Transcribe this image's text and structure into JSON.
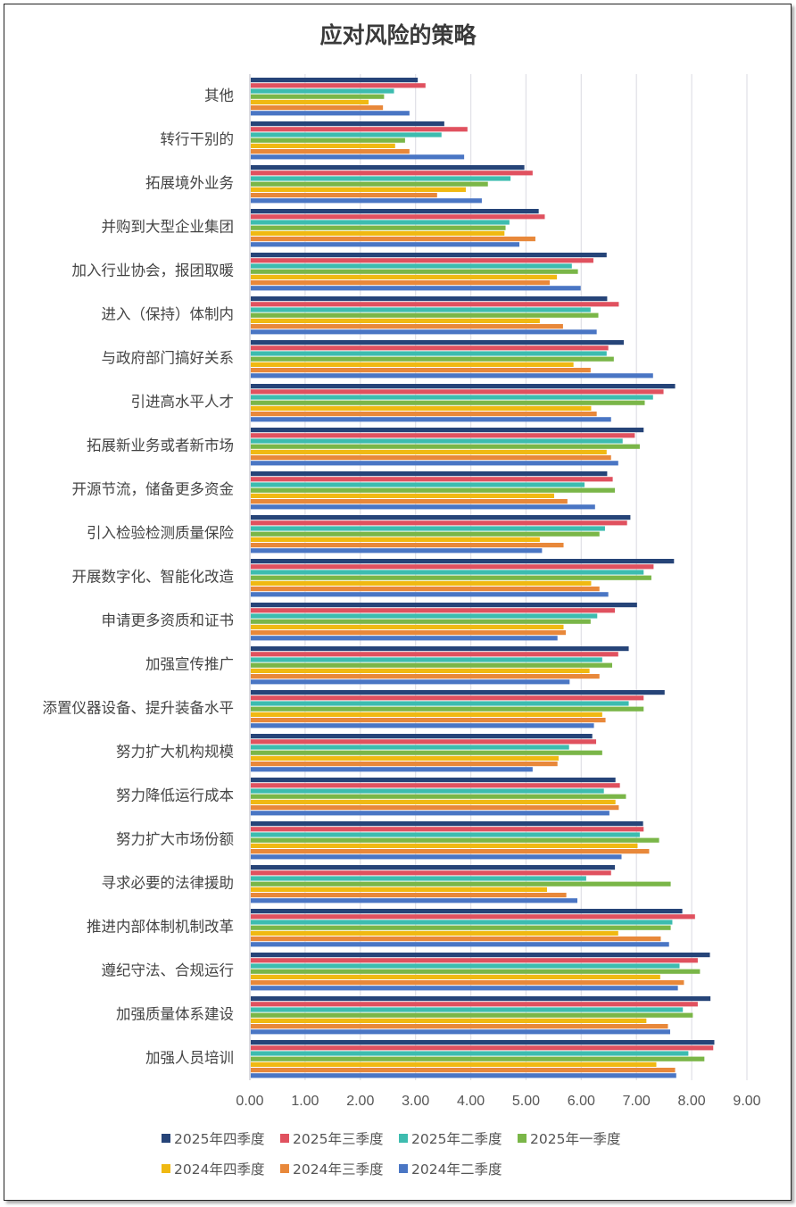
{
  "chart_data": {
    "type": "bar",
    "orientation": "horizontal",
    "title": "应对风险的策略",
    "categories": [
      "其他",
      "转行干别的",
      "拓展境外业务",
      "并购到大型企业集团",
      "加入行业协会，报团取暖",
      "进入（保持）体制内",
      "与政府部门搞好关系",
      "引进高水平人才",
      "拓展新业务或者新市场",
      "开源节流，储备更多资金",
      "引入检验检测质量保险",
      "开展数字化、智能化改造",
      "申请更多资质和证书",
      "加强宣传推广",
      "添置仪器设备、提升装备水平",
      "努力扩大机构规模",
      "努力降低运行成本",
      "努力扩大市场份额",
      "寻求必要的法律援助",
      "推进内部体制机制改革",
      "遵纪守法、合规运行",
      "加强质量体系建设",
      "加强人员培训"
    ],
    "series": [
      {
        "name": "2025年四季度",
        "color": "#264478",
        "values": [
          3.04,
          3.52,
          4.97,
          5.23,
          6.46,
          6.47,
          6.77,
          7.7,
          7.13,
          6.47,
          6.89,
          7.68,
          7.01,
          6.86,
          7.51,
          6.2,
          6.62,
          7.12,
          6.61,
          7.83,
          8.33,
          8.34,
          8.41
        ]
      },
      {
        "name": "2025年三季度",
        "color": "#E0515F",
        "values": [
          3.18,
          3.94,
          5.12,
          5.34,
          6.22,
          6.68,
          6.49,
          7.49,
          6.97,
          6.57,
          6.83,
          7.31,
          6.61,
          6.67,
          7.13,
          6.27,
          6.7,
          7.13,
          6.54,
          8.06,
          8.11,
          8.11,
          8.39
        ]
      },
      {
        "name": "2025年二季度",
        "color": "#3DBCAF",
        "values": [
          2.61,
          3.47,
          4.72,
          4.7,
          5.83,
          6.17,
          6.46,
          7.3,
          6.75,
          6.06,
          6.43,
          7.13,
          6.29,
          6.38,
          6.86,
          5.78,
          6.41,
          7.06,
          6.09,
          7.65,
          7.78,
          7.84,
          7.94
        ]
      },
      {
        "name": "2025年一季度",
        "color": "#7AB648",
        "values": [
          2.43,
          2.81,
          4.31,
          4.63,
          5.94,
          6.31,
          6.59,
          7.15,
          7.06,
          6.61,
          6.33,
          7.27,
          6.17,
          6.56,
          7.13,
          6.38,
          6.81,
          7.41,
          7.62,
          7.62,
          8.15,
          8.02,
          8.23
        ]
      },
      {
        "name": "2024年四季度",
        "color": "#F0B912",
        "values": [
          2.15,
          2.63,
          3.91,
          4.61,
          5.56,
          5.25,
          5.86,
          6.18,
          6.46,
          5.51,
          5.25,
          6.18,
          5.68,
          6.15,
          6.38,
          5.59,
          6.62,
          7.02,
          5.38,
          6.67,
          7.43,
          7.18,
          7.36
        ]
      },
      {
        "name": "2024年三季度",
        "color": "#E8883A",
        "values": [
          2.41,
          2.89,
          3.39,
          5.17,
          5.43,
          5.67,
          6.17,
          6.28,
          6.54,
          5.75,
          5.68,
          6.33,
          5.72,
          6.33,
          6.44,
          5.57,
          6.68,
          7.23,
          5.73,
          7.44,
          7.86,
          7.57,
          7.7
        ]
      },
      {
        "name": "2024年二季度",
        "color": "#4A76C4",
        "values": [
          2.89,
          3.88,
          4.2,
          4.88,
          5.99,
          6.28,
          7.3,
          6.54,
          6.67,
          6.25,
          5.29,
          6.49,
          5.57,
          5.79,
          6.23,
          5.12,
          6.51,
          6.73,
          5.93,
          7.59,
          7.75,
          7.61,
          7.72
        ]
      }
    ],
    "xlim": [
      0,
      9
    ],
    "xticks": [
      "0.00",
      "1.00",
      "2.00",
      "3.00",
      "4.00",
      "5.00",
      "6.00",
      "7.00",
      "8.00",
      "9.00"
    ],
    "xlabel": "",
    "ylabel": "",
    "grid": "vertical",
    "legend": "bottom"
  }
}
